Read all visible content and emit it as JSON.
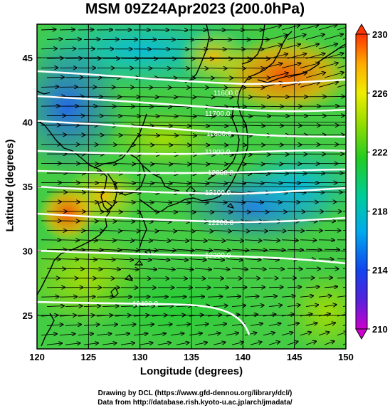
{
  "header": {
    "title": "MSM 09Z24Apr2023 (200.0hPa)"
  },
  "axes": {
    "xlabel": "Longitude (degrees)",
    "ylabel": "Latitude  (degrees)",
    "xticks": [
      120,
      125,
      130,
      135,
      140,
      145,
      150
    ],
    "yticks": [
      25,
      30,
      35,
      40,
      45
    ],
    "xrange": [
      120,
      150
    ],
    "yrange": [
      22.4,
      47.6
    ]
  },
  "colorbar": {
    "labels": [
      230,
      226,
      222,
      218,
      214,
      210
    ],
    "range": [
      210,
      230
    ],
    "colors": [
      "#cc00cc",
      "#3322dd",
      "#00aaee",
      "#00cc66",
      "#99dd00",
      "#eeee00",
      "#ffaa00",
      "#ff3300"
    ]
  },
  "contours": [
    {
      "label": "11600.0"
    },
    {
      "label": "11700.0"
    },
    {
      "label": "11800.0"
    },
    {
      "label": "11900.0"
    },
    {
      "label": "12000.0"
    },
    {
      "label": "12100.0"
    },
    {
      "label": "12200.0"
    },
    {
      "label": "12300.0"
    },
    {
      "label": "12400.0"
    }
  ],
  "footer": {
    "line1": "Drawing by DCL (https://www.gfd-dennou.org/library/dcl/)",
    "line2": "Data from http://database.rish.kyoto-u.ac.jp/arch/jmadata/"
  }
}
